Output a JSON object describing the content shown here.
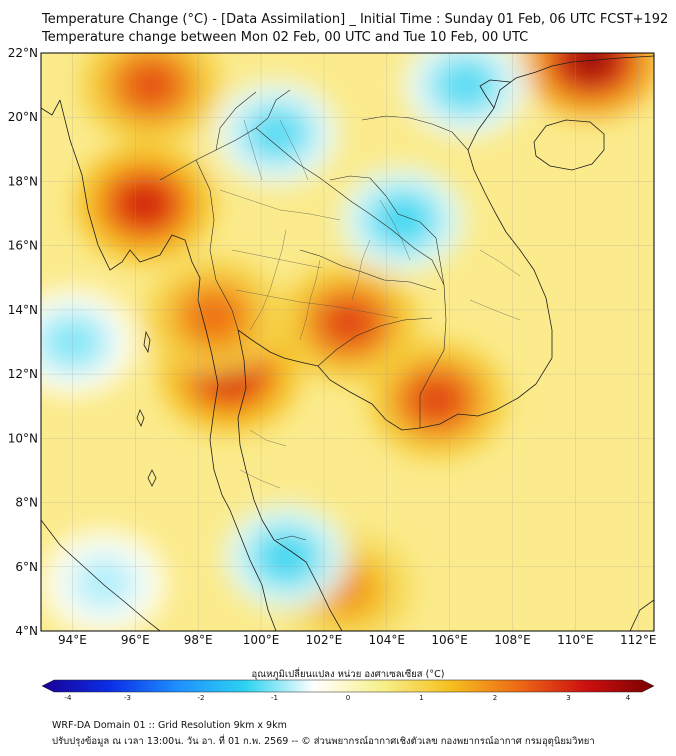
{
  "header": {
    "title": "Temperature Change (°C) - [Data Assimilation] _ Initial Time : Sunday 01 Feb, 06 UTC FCST+192",
    "subtitle": "Temperature change between Mon 02 Feb, 00 UTC and Tue 10 Feb, 00 UTC"
  },
  "map": {
    "lat_range": [
      4,
      22
    ],
    "lon_range": [
      93,
      112.5
    ],
    "lat_ticks": [
      "4°N",
      "6°N",
      "8°N",
      "10°N",
      "12°N",
      "14°N",
      "16°N",
      "18°N",
      "20°N",
      "22°N"
    ],
    "lon_ticks": [
      "94°E",
      "96°E",
      "98°E",
      "100°E",
      "102°E",
      "104°E",
      "106°E",
      "108°E",
      "110°E",
      "112°E"
    ],
    "grid": true,
    "warm_areas": [
      {
        "lon": 96.3,
        "lat": 17.3,
        "value": 3.0
      },
      {
        "lon": 96.5,
        "lat": 21.0,
        "value": 2.5
      },
      {
        "lon": 99.0,
        "lat": 12.0,
        "value": 3.0
      },
      {
        "lon": 102.8,
        "lat": 13.6,
        "value": 2.6
      },
      {
        "lon": 105.6,
        "lat": 11.2,
        "value": 2.6
      },
      {
        "lon": 110.5,
        "lat": 21.8,
        "value": 3.6
      },
      {
        "lon": 98.5,
        "lat": 13.8,
        "value": 2.2
      },
      {
        "lon": 102.7,
        "lat": 5.3,
        "value": 1.8
      }
    ],
    "cool_areas": [
      {
        "lon": 100.5,
        "lat": 19.5,
        "value": -1.2
      },
      {
        "lon": 104.5,
        "lat": 16.8,
        "value": -1.3
      },
      {
        "lon": 106.5,
        "lat": 21.0,
        "value": -1.2
      },
      {
        "lon": 100.8,
        "lat": 6.3,
        "value": -1.3
      },
      {
        "lon": 94.0,
        "lat": 13.0,
        "value": -1.0
      },
      {
        "lon": 95.0,
        "lat": 5.5,
        "value": -0.8
      }
    ]
  },
  "colorbar": {
    "label": "อุณหภูมิเปลี่ยนแปลง หน่วย องศาเซลเซียส (°C)",
    "ticks": [
      "-4",
      "-3",
      "-2",
      "-1",
      "0",
      "1",
      "2",
      "3",
      "4"
    ],
    "range": [
      -4,
      4
    ],
    "stops": [
      "#1a0096",
      "#0a2ee6",
      "#1e90ff",
      "#2ed3f0",
      "#ffffff",
      "#f7f08a",
      "#f5c020",
      "#ee6a16",
      "#cc1010",
      "#7a0000"
    ]
  },
  "footer": {
    "line1": "WRF-DA Domain 01 :: Grid Resolution 9km x 9km",
    "line2": "ปรับปรุงข้อมูล ณ เวลา 13:00น. วัน อา. ที่ 01 ก.พ. 2569 -- © ส่วนพยากรณ์อากาศเชิงตัวเลข กองพยากรณ์อากาศ กรมอุตุนิยมวิทยา"
  }
}
